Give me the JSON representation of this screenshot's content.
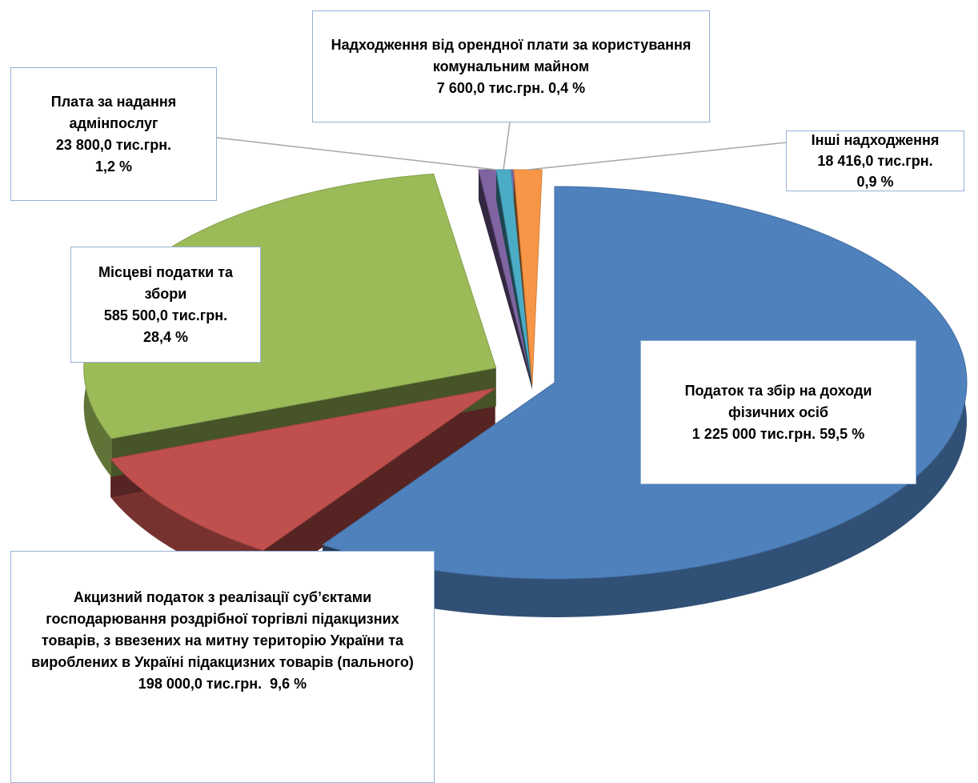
{
  "chart_data": {
    "type": "pie",
    "categories": [
      "Податок та збір на доходи фізичних осіб",
      "Акцизний податок з реалізації суб’єктами господарювання роздрібної торгівлі підакцизних товарів, з ввезених на митну територію України та вироблених в Україні підакцизних товарів (пального)",
      "Місцеві податки та збори",
      "Плата за надання адмінпослуг",
      "Надходження від орендної плати за користування комунальним майном",
      "Інші надходження"
    ],
    "values": [
      1225000,
      198000,
      585500,
      23800,
      7600,
      18416
    ],
    "value_labels": [
      "1 225 000 тис.грн.",
      "198 000,0 тис.грн.",
      "585 500,0 тис.грн.",
      "23 800,0 тис.грн.",
      "7 600,0 тис.грн.",
      "18 416,0 тис.грн."
    ],
    "percents": [
      59.5,
      9.6,
      28.4,
      1.2,
      0.4,
      0.9
    ],
    "percent_labels": [
      "59,5 %",
      "9,6 %",
      "28,4 %",
      "1,2 %",
      "0,4 %",
      "0,9 %"
    ],
    "colors": [
      "#4f81bd",
      "#c0504d",
      "#9bbb59",
      "#8064a2",
      "#4bacc6",
      "#f79646"
    ]
  }
}
